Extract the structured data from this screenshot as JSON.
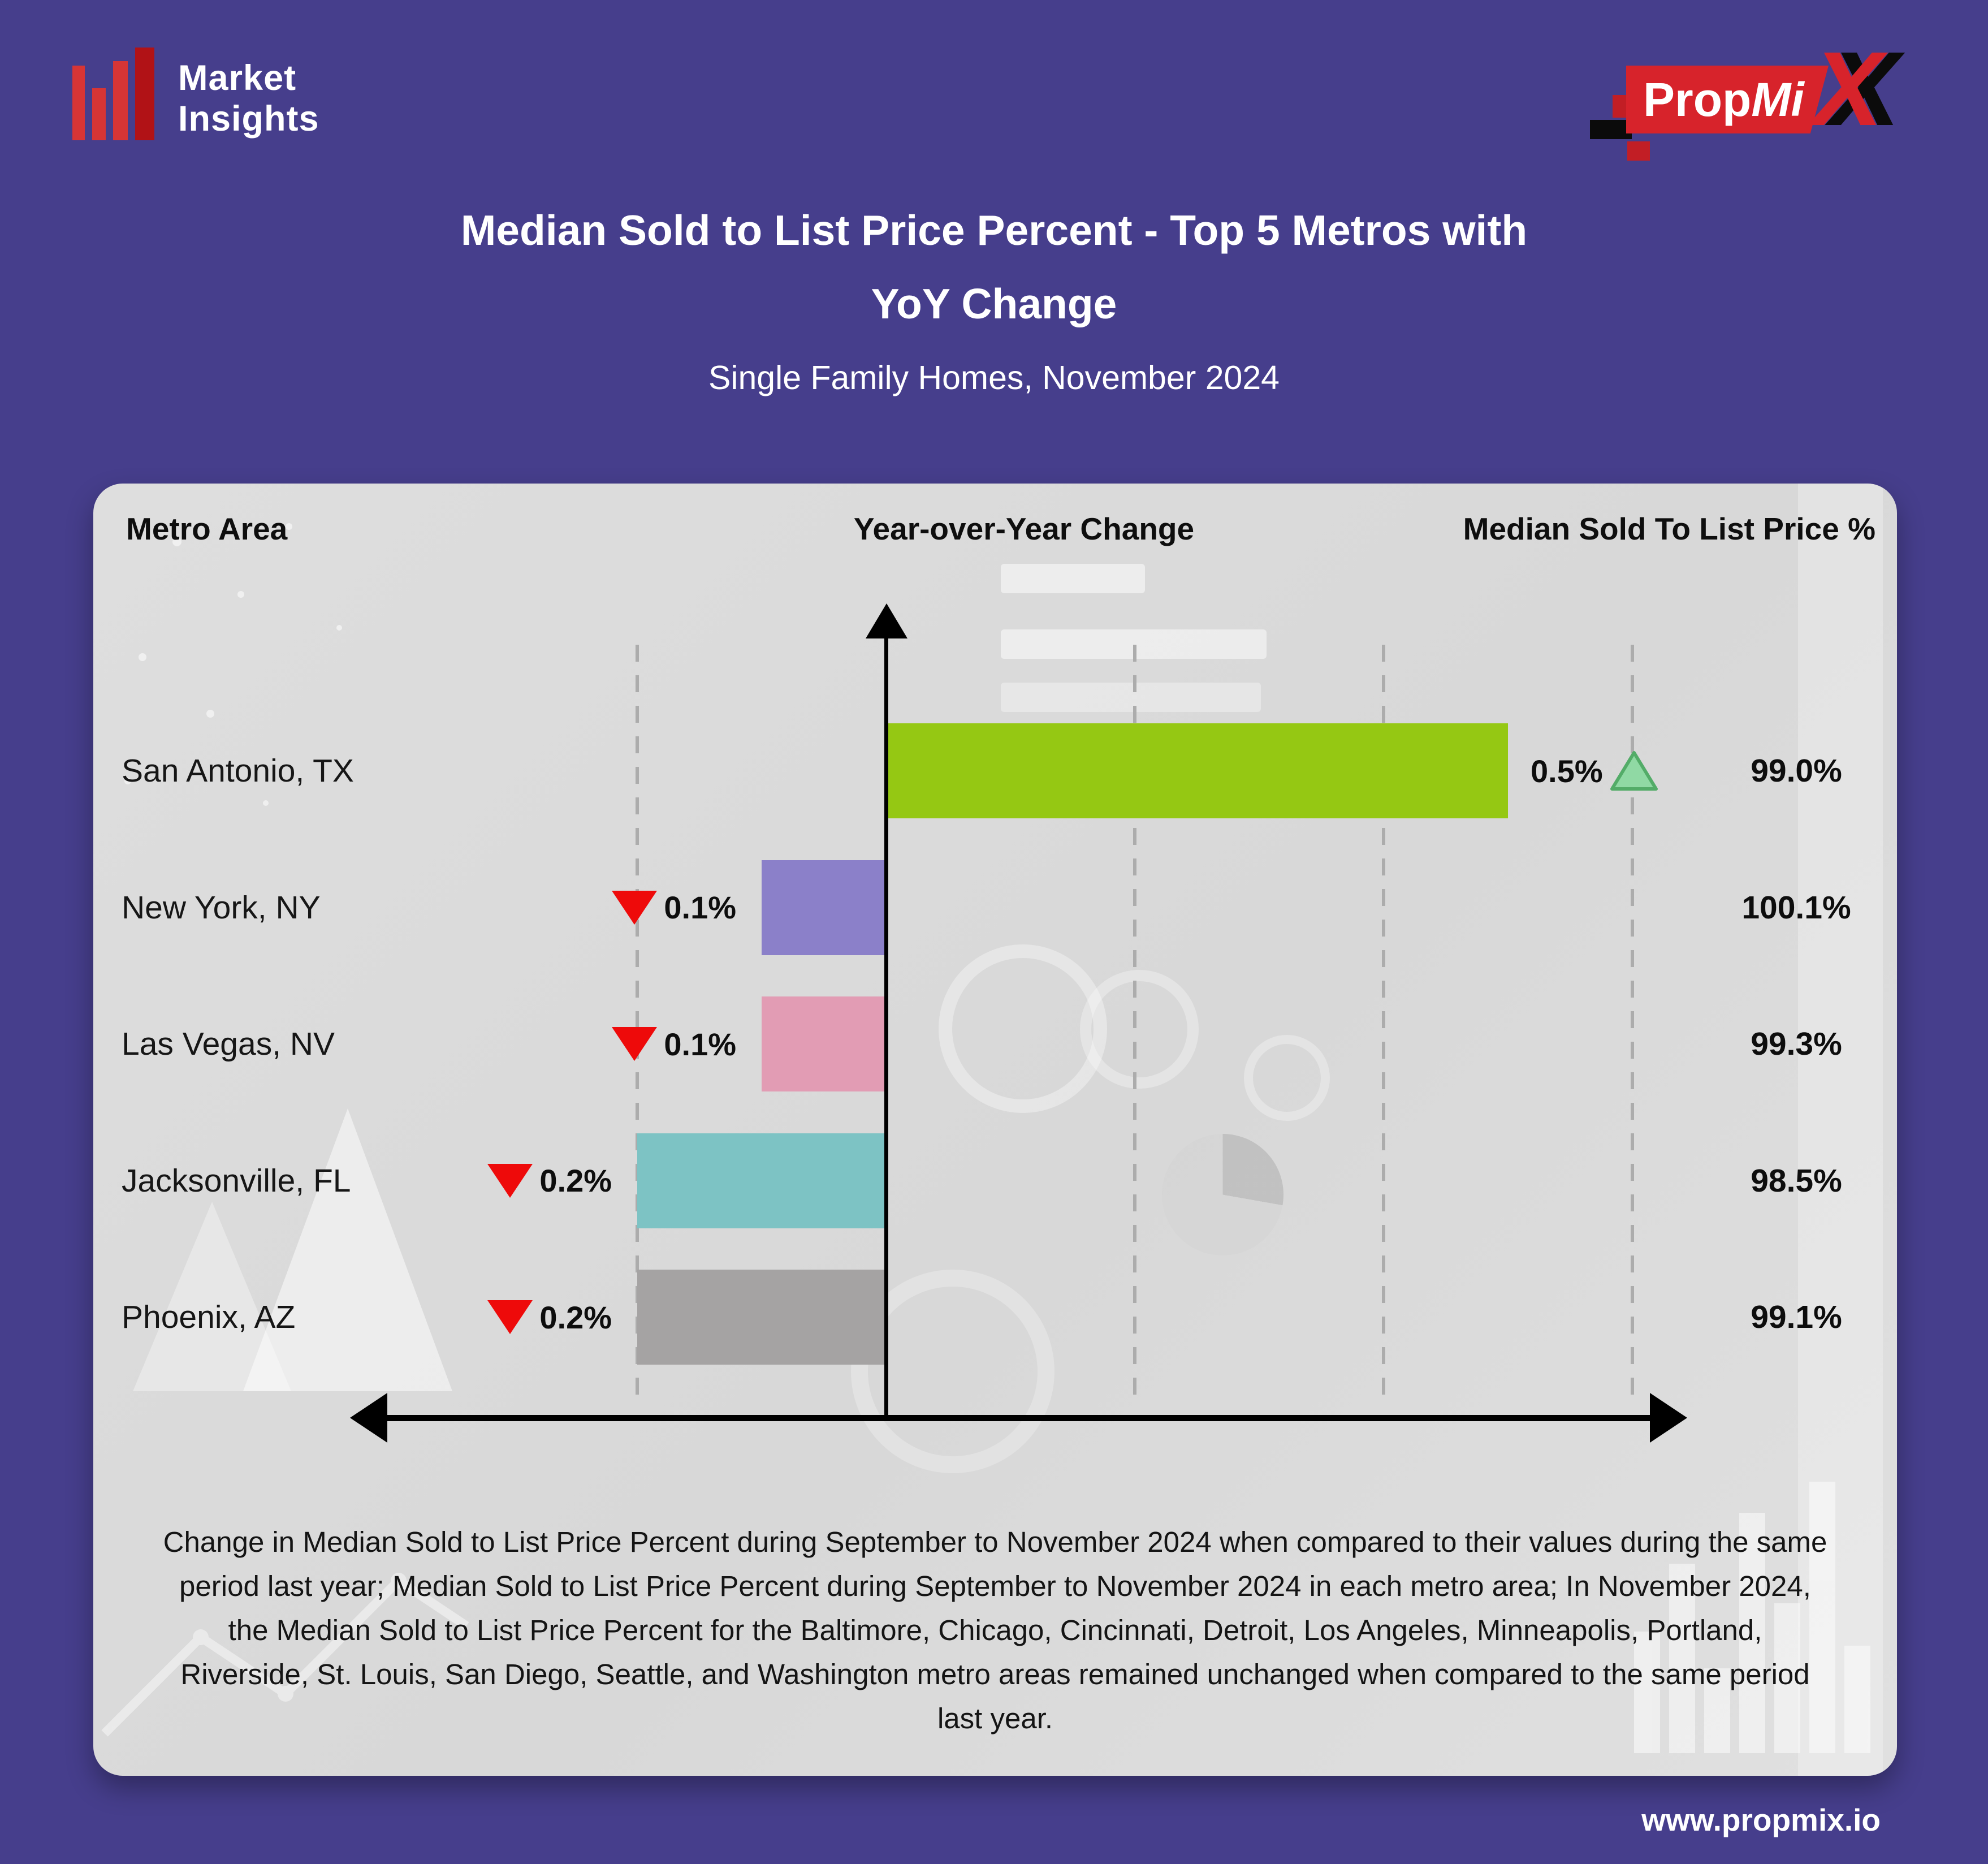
{
  "page": {
    "footer_url": "www.propmix.io"
  },
  "brand": {
    "market_insights": {
      "line1": "Market",
      "line2": "Insights"
    },
    "propmix": {
      "prop": "Prop",
      "mi": "Mi",
      "x": "X"
    }
  },
  "title": {
    "line1": "Median Sold to List Price Percent - Top 5 Metros with",
    "line2": "YoY Change"
  },
  "subtitle": "Single Family Homes, November 2024",
  "table_headers": {
    "metro": "Metro Area",
    "yoy": "Year-over-Year Change",
    "value": "Median Sold To List Price %"
  },
  "chart_data": {
    "type": "bar",
    "orientation": "horizontal",
    "title": "Median Sold to List Price Percent - Top 5 Metros with YoY Change",
    "subtitle": "Single Family Homes, November 2024",
    "categories": [
      "San Antonio, TX",
      "New York, NY",
      "Las Vegas, NV",
      "Jacksonville, FL",
      "Phoenix, AZ"
    ],
    "series": [
      {
        "name": "YoY Change (%)",
        "values": [
          0.5,
          -0.1,
          -0.1,
          -0.2,
          -0.2
        ]
      },
      {
        "name": "Median Sold To List Price (%)",
        "values": [
          99.0,
          100.1,
          99.3,
          98.5,
          99.1
        ]
      }
    ],
    "x_axis": {
      "label": "Year-over-Year Change",
      "gridline_step_pct": 0.2,
      "gridlines_pct": [
        -0.2,
        0.2,
        0.4,
        0.6
      ],
      "range_pct": [
        -0.35,
        0.65
      ],
      "grid": "dashed",
      "zero_line": true
    },
    "legend": "none",
    "rows": [
      {
        "metro": "San Antonio, TX",
        "yoy_pct": 0.5,
        "yoy_label": "0.5%",
        "direction": "up",
        "value_label": "99.0%",
        "bar_color": "#95C813"
      },
      {
        "metro": "New York, NY",
        "yoy_pct": -0.1,
        "yoy_label": "0.1%",
        "direction": "down",
        "value_label": "100.1%",
        "bar_color": "#8B80C9"
      },
      {
        "metro": "Las Vegas, NV",
        "yoy_pct": -0.1,
        "yoy_label": "0.1%",
        "direction": "down",
        "value_label": "99.3%",
        "bar_color": "#E29CB4"
      },
      {
        "metro": "Jacksonville, FL",
        "yoy_pct": -0.2,
        "yoy_label": "0.2%",
        "direction": "down",
        "value_label": "98.5%",
        "bar_color": "#7DC3C4"
      },
      {
        "metro": "Phoenix, AZ",
        "yoy_pct": -0.2,
        "yoy_label": "0.2%",
        "direction": "down",
        "value_label": "99.1%",
        "bar_color": "#A5A3A3"
      }
    ]
  },
  "footnote": "Change in Median Sold to List Price Percent during September to November 2024 when compared to their values during the same period last year; Median Sold to List Price Percent during September to November 2024 in each metro area;  In November 2024, the Median Sold to List Price Percent for the Baltimore, Chicago, Cincinnati, Detroit, Los Angeles, Minneapolis, Portland, Riverside, St. Louis, San Diego, Seattle, and Washington metro areas remained unchanged when compared to the same period last year.",
  "colors": {
    "page_background": "#463E8C",
    "card_background": "#DADADA",
    "up_indicator_fill": "#90D9A4",
    "up_indicator_stroke": "#53AC68",
    "down_indicator": "#EE0A0A",
    "brand_red": "#D7232B",
    "text_dark": "#111111"
  }
}
